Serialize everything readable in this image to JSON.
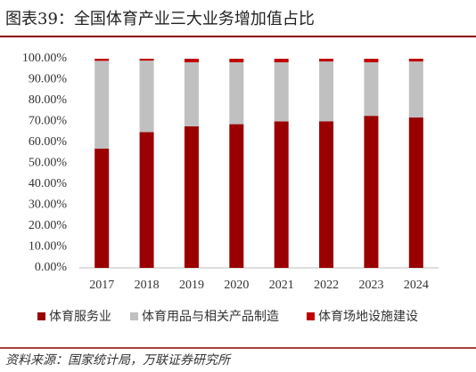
{
  "chart_data": {
    "type": "stacked_bar",
    "title": "图表39：全国体育产业三大业务增加值占比",
    "source": "资料来源：国家统计局，万联证券研究所",
    "categories": [
      "2017",
      "2018",
      "2019",
      "2020",
      "2021",
      "2022",
      "2023",
      "2024"
    ],
    "series": [
      {
        "name": "体育服务业",
        "color": "#9b0000",
        "values": [
          57.0,
          64.9,
          67.7,
          68.7,
          70.0,
          70.1,
          72.7,
          71.9
        ]
      },
      {
        "name": "体育用品与相关产品制造",
        "color": "#c0c0c0",
        "values": [
          42.0,
          34.2,
          30.6,
          29.6,
          28.3,
          28.6,
          25.6,
          26.8
        ]
      },
      {
        "name": "体育场地设施建设",
        "color": "#c00000",
        "values": [
          1.0,
          0.9,
          1.7,
          1.7,
          1.7,
          1.3,
          1.7,
          1.3
        ]
      }
    ],
    "ylim": [
      0,
      100
    ],
    "yticks": [
      {
        "value": 0,
        "label": "0.00%"
      },
      {
        "value": 10,
        "label": "10.00%"
      },
      {
        "value": 20,
        "label": "20.00%"
      },
      {
        "value": 30,
        "label": "30.00%"
      },
      {
        "value": 40,
        "label": "40.00%"
      },
      {
        "value": 50,
        "label": "50.00%"
      },
      {
        "value": 60,
        "label": "60.00%"
      },
      {
        "value": 70,
        "label": "70.00%"
      },
      {
        "value": 80,
        "label": "80.00%"
      },
      {
        "value": 90,
        "label": "90.00%"
      },
      {
        "value": 100,
        "label": "100.00%"
      }
    ],
    "grid": false
  }
}
